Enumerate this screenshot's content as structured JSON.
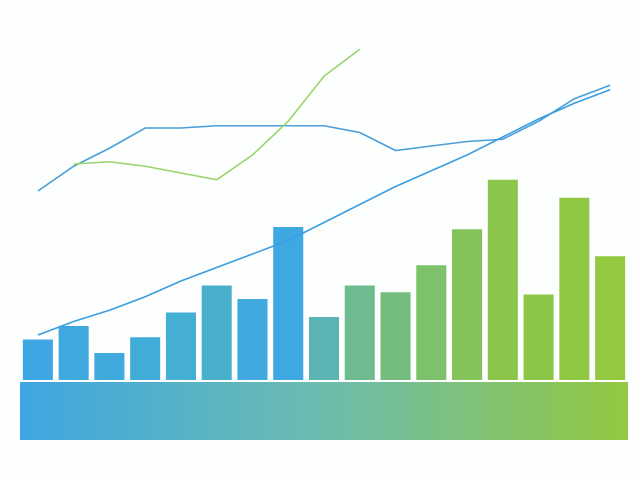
{
  "chart_data": {
    "type": "bar",
    "categories": [
      null,
      null,
      null,
      null,
      null,
      null,
      null,
      null,
      null,
      null,
      null,
      null,
      null,
      null,
      null,
      null,
      null
    ],
    "values": [
      18,
      24,
      12,
      19,
      30,
      42,
      36,
      68,
      28,
      42,
      39,
      51,
      67,
      89,
      38,
      81,
      55
    ],
    "colors": [
      "#3ea6e2",
      "#3ea8df",
      "#40aadc",
      "#42acd8",
      "#45aed3",
      "#49b0cc",
      "#3fa9e0",
      "#3fa8e3",
      "#5cb5b4",
      "#6dbb8f",
      "#74bd7e",
      "#7dc16a",
      "#84c35a",
      "#8bc54c",
      "#8cc647",
      "#8fc743",
      "#93c840"
    ],
    "ylim": [
      0,
      160
    ],
    "series": [
      {
        "color": "#4a9fd8",
        "values": [
          84,
          95,
          103,
          112,
          112,
          113,
          113,
          113,
          113,
          110,
          102,
          104,
          106,
          107,
          115,
          125,
          131
        ]
      },
      {
        "color": "#3b9ee0",
        "values": [
          20,
          26,
          31,
          37,
          44,
          50,
          56,
          62,
          70,
          78,
          86,
          93,
          100,
          108,
          116,
          123,
          129
        ]
      },
      {
        "color": "#9bd46a",
        "values": [
          null,
          96,
          97,
          95,
          92,
          89,
          100,
          115,
          135,
          147,
          null,
          null,
          null,
          null,
          null,
          null,
          null
        ]
      }
    ]
  }
}
